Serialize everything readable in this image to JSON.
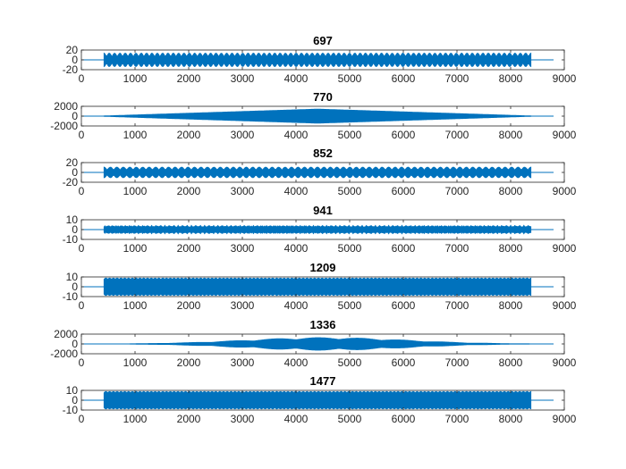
{
  "chart_data": [
    {
      "type": "line",
      "title": "697",
      "xlabel": "",
      "ylabel": "",
      "xlim": [
        0,
        9000
      ],
      "ylim": [
        -20,
        20
      ],
      "xticks": [
        "0",
        "1000",
        "2000",
        "3000",
        "4000",
        "5000",
        "6000",
        "7000",
        "8000",
        "9000"
      ],
      "yticks": [
        "20",
        "0",
        "-20"
      ],
      "signal": {
        "x_start": 0,
        "x_end": 8800,
        "burst_start": 420,
        "burst_end": 8380,
        "amplitude": 14,
        "envelope": "periodic",
        "lobes": 80
      }
    },
    {
      "type": "line",
      "title": "770",
      "xlabel": "",
      "ylabel": "",
      "xlim": [
        0,
        9000
      ],
      "ylim": [
        -2000,
        2000
      ],
      "xticks": [
        "0",
        "1000",
        "2000",
        "3000",
        "4000",
        "5000",
        "6000",
        "7000",
        "8000",
        "9000"
      ],
      "yticks": [
        "2000",
        "0",
        "-2000"
      ],
      "signal": {
        "x_start": 0,
        "x_end": 8800,
        "burst_start": 420,
        "burst_end": 8380,
        "amplitude": 1450,
        "envelope": "triangle",
        "lobes": 0
      }
    },
    {
      "type": "line",
      "title": "852",
      "xlabel": "",
      "ylabel": "",
      "xlim": [
        0,
        9000
      ],
      "ylim": [
        -20,
        20
      ],
      "xticks": [
        "0",
        "1000",
        "2000",
        "3000",
        "4000",
        "5000",
        "6000",
        "7000",
        "8000",
        "9000"
      ],
      "yticks": [
        "20",
        "0",
        "-20"
      ],
      "signal": {
        "x_start": 0,
        "x_end": 8800,
        "burst_start": 420,
        "burst_end": 8380,
        "amplitude": 11,
        "envelope": "periodic",
        "lobes": 66
      }
    },
    {
      "type": "line",
      "title": "941",
      "xlabel": "",
      "ylabel": "",
      "xlim": [
        0,
        9000
      ],
      "ylim": [
        -10,
        10
      ],
      "xticks": [
        "0",
        "1000",
        "2000",
        "3000",
        "4000",
        "5000",
        "6000",
        "7000",
        "8000",
        "9000"
      ],
      "yticks": [
        "10",
        "0",
        "-10"
      ],
      "signal": {
        "x_start": 0,
        "x_end": 8800,
        "burst_start": 420,
        "burst_end": 8380,
        "amplitude": 4.5,
        "envelope": "noisy",
        "lobes": 0
      }
    },
    {
      "type": "line",
      "title": "1209",
      "xlabel": "",
      "ylabel": "",
      "xlim": [
        0,
        9000
      ],
      "ylim": [
        -10,
        10
      ],
      "xticks": [
        "0",
        "1000",
        "2000",
        "3000",
        "4000",
        "5000",
        "6000",
        "7000",
        "8000",
        "9000"
      ],
      "yticks": [
        "10",
        "0",
        "-10"
      ],
      "signal": {
        "x_start": 0,
        "x_end": 8800,
        "burst_start": 420,
        "burst_end": 8380,
        "amplitude": 9,
        "envelope": "dense",
        "lobes": 0
      }
    },
    {
      "type": "line",
      "title": "1336",
      "xlabel": "",
      "ylabel": "",
      "xlim": [
        0,
        9000
      ],
      "ylim": [
        -2000,
        2000
      ],
      "xticks": [
        "0",
        "1000",
        "2000",
        "3000",
        "4000",
        "5000",
        "6000",
        "7000",
        "8000",
        "9000"
      ],
      "yticks": [
        "2000",
        "0",
        "-2000"
      ],
      "signal": {
        "x_start": 0,
        "x_end": 8800,
        "burst_start": 420,
        "burst_end": 8380,
        "amplitude": 1300,
        "envelope": "bell-beat",
        "lobes": 10
      }
    },
    {
      "type": "line",
      "title": "1477",
      "xlabel": "",
      "ylabel": "",
      "xlim": [
        0,
        9000
      ],
      "ylim": [
        -10,
        10
      ],
      "xticks": [
        "0",
        "1000",
        "2000",
        "3000",
        "4000",
        "5000",
        "6000",
        "7000",
        "8000",
        "9000"
      ],
      "yticks": [
        "10",
        "0",
        "-10"
      ],
      "signal": {
        "x_start": 0,
        "x_end": 8800,
        "burst_start": 420,
        "burst_end": 8380,
        "amplitude": 9,
        "envelope": "dense",
        "lobes": 0
      }
    }
  ],
  "style": {
    "series_color": "#0072BD",
    "axis_color": "#262626",
    "background": "#ffffff",
    "grid": false,
    "legend": "none"
  }
}
